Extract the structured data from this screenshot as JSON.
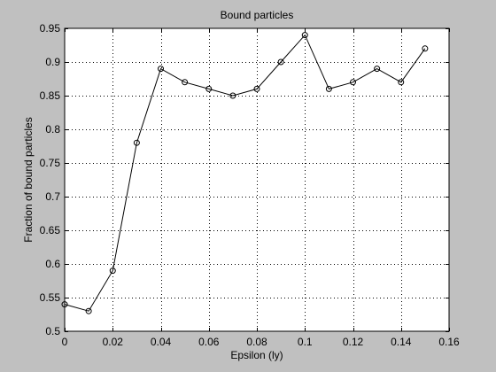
{
  "chart_data": {
    "type": "line",
    "title": "Bound particles",
    "xlabel": "Epsilon (ly)",
    "ylabel": "Fraction of bound particles",
    "xlim": [
      0,
      0.16
    ],
    "ylim": [
      0.5,
      0.95
    ],
    "xticks": [
      0,
      0.02,
      0.04,
      0.06,
      0.08,
      0.1,
      0.12,
      0.14,
      0.16
    ],
    "xtick_labels": [
      "0",
      "0.02",
      "0.04",
      "0.06",
      "0.08",
      "0.1",
      "0.12",
      "0.14",
      "0.16"
    ],
    "yticks": [
      0.5,
      0.55,
      0.6,
      0.65,
      0.7,
      0.75,
      0.8,
      0.85,
      0.9,
      0.95
    ],
    "ytick_labels": [
      "0.5",
      "0.55",
      "0.6",
      "0.65",
      "0.7",
      "0.75",
      "0.8",
      "0.85",
      "0.9",
      "0.95"
    ],
    "grid": true,
    "marker": "circle",
    "series": [
      {
        "x": [
          0,
          0.01,
          0.02,
          0.03,
          0.04,
          0.05,
          0.06,
          0.07,
          0.08,
          0.09,
          0.1,
          0.11,
          0.12,
          0.13,
          0.14,
          0.15
        ],
        "y": [
          0.54,
          0.53,
          0.59,
          0.78,
          0.89,
          0.87,
          0.86,
          0.85,
          0.86,
          0.9,
          0.94,
          0.86,
          0.87,
          0.89,
          0.87,
          0.92
        ],
        "color": "#000000"
      }
    ],
    "colors": {
      "figure_background": "#c0c0c0",
      "axes_background": "#ffffff",
      "line": "#000000",
      "grid": "#000000"
    }
  }
}
